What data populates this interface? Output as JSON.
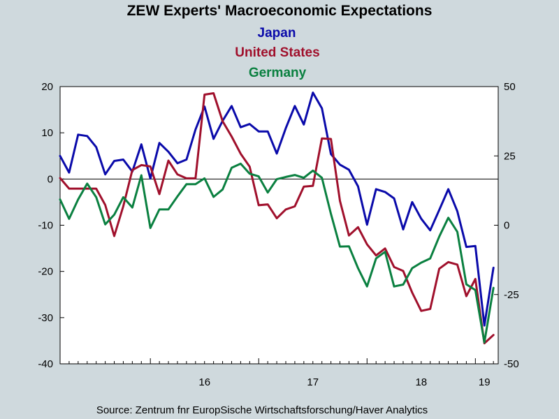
{
  "colors": {
    "background": "#cfd9dd",
    "plot_background": "#ffffff",
    "japan": "#0a0aaa",
    "united_states": "#a0102c",
    "germany": "#0a8040"
  },
  "chart_data": {
    "type": "line",
    "title": "ZEW Experts' Macroeconomic Expectations",
    "subtitles": [
      "Japan",
      "United States",
      "Germany"
    ],
    "source": "Source:  Zentrum fnr EuropSische Wirtschaftsforschung/Haver Analytics",
    "x_tick_labels": [
      "16",
      "17",
      "18",
      "19"
    ],
    "left_axis": {
      "ylim": [
        -40,
        20
      ],
      "ticks": [
        "20",
        "10",
        "0",
        "-10",
        "-20",
        "-30",
        "-40"
      ]
    },
    "right_axis": {
      "ylim": [
        -50,
        50
      ],
      "ticks": [
        "50",
        "25",
        "0",
        "-25",
        "-50"
      ]
    },
    "zero_line": true,
    "x_start": "2015-03",
    "x_end": "2019-04",
    "series": [
      {
        "name": "Japan",
        "axis": "left",
        "color": "#0a0aaa",
        "values": [
          5.0,
          1.4,
          9.6,
          9.3,
          6.9,
          1.0,
          3.9,
          4.2,
          1.6,
          7.5,
          0.1,
          7.8,
          5.9,
          3.4,
          4.2,
          10.7,
          15.7,
          8.7,
          12.6,
          15.8,
          11.2,
          11.9,
          10.3,
          10.3,
          5.5,
          11.0,
          15.8,
          11.8,
          18.7,
          15.3,
          5.4,
          3.1,
          2.0,
          -1.6,
          -9.9,
          -2.2,
          -2.8,
          -4.2,
          -10.9,
          -5.0,
          -8.6,
          -11.1,
          -6.7,
          -2.2,
          -7.0,
          -14.7,
          -14.5,
          -31.7,
          -19.2
        ]
      },
      {
        "name": "United States",
        "axis": "right",
        "color": "#a0102c",
        "values": [
          17.0,
          13.2,
          13.2,
          13.2,
          13.2,
          7.3,
          -3.9,
          6.8,
          19.9,
          21.7,
          21.2,
          11.2,
          23.3,
          18.3,
          16.9,
          16.9,
          47.1,
          47.6,
          37.5,
          32.0,
          25.8,
          21.1,
          7.2,
          7.5,
          2.5,
          5.7,
          6.8,
          13.9,
          14.2,
          31.3,
          31.1,
          8.8,
          -3.7,
          -0.7,
          -6.9,
          -10.9,
          -8.4,
          -15.1,
          -16.5,
          -24.3,
          -30.9,
          -30.2,
          -15.7,
          -13.3,
          -14.2,
          -25.6,
          -19.4,
          -42.6,
          -39.6
        ]
      },
      {
        "name": "Germany",
        "axis": "right",
        "color": "#0a8040",
        "values": [
          9.3,
          2.3,
          9.3,
          15.0,
          10.1,
          0.3,
          3.8,
          10.1,
          6.4,
          18.0,
          -1.0,
          5.7,
          5.7,
          10.4,
          14.8,
          14.8,
          16.9,
          10.2,
          12.9,
          20.7,
          22.2,
          18.6,
          17.6,
          11.8,
          16.6,
          17.4,
          18.1,
          17.1,
          19.7,
          17.1,
          4.1,
          -7.7,
          -7.6,
          -15.5,
          -22.1,
          -12.0,
          -9.6,
          -22.1,
          -21.4,
          -15.5,
          -13.5,
          -12.0,
          -4.1,
          2.7,
          -2.4,
          -21.3,
          -23.4,
          -42.3,
          -22.6
        ]
      }
    ]
  }
}
